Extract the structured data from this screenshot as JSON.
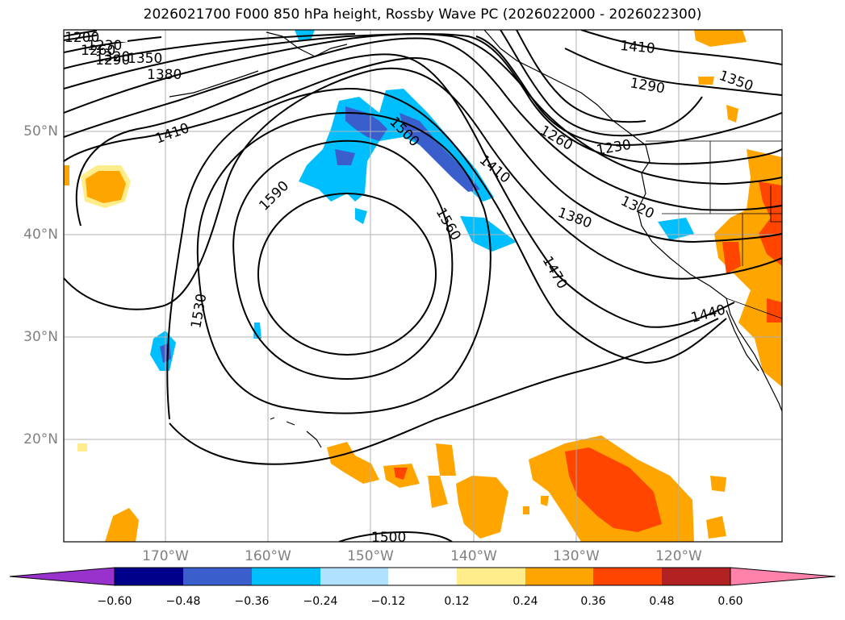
{
  "title": "2026021700 F000 850 hPa height, Rossby Wave PC (2026022000 - 2026022300)",
  "lat_labels": [
    "50°N",
    "40°N",
    "30°N",
    "20°N"
  ],
  "lon_labels": [
    "170°W",
    "160°W",
    "150°W",
    "140°W",
    "130°W",
    "120°W"
  ],
  "contour_labels": [
    "1200",
    "1230",
    "1260",
    "1290",
    "1320",
    "1350",
    "1380",
    "1410",
    "1590",
    "1500",
    "1410",
    "1560",
    "1380",
    "1320",
    "1470",
    "1530",
    "1440",
    "1500",
    "1260",
    "1290",
    "1350",
    "1410",
    "1230"
  ],
  "colorbar": {
    "ticks": [
      "−0.60",
      "−0.48",
      "−0.36",
      "−0.24",
      "−0.12",
      "0.12",
      "0.24",
      "0.36",
      "0.48",
      "0.60"
    ],
    "colors": [
      "#9932cc",
      "#00008b",
      "#3a5fcd",
      "#00bfff",
      "#b0e2ff",
      "#ffffff",
      "#ffec8b",
      "#ffa500",
      "#ff4500",
      "#b22222",
      "#ff82ab"
    ]
  },
  "chart_data": {
    "type": "contour_map",
    "variable": "850 hPa height",
    "shaded_variable": "Rossby Wave PC",
    "lat_range": [
      10,
      60
    ],
    "lon_range": [
      -180,
      -110
    ],
    "contour_levels": [
      1200,
      1230,
      1260,
      1290,
      1320,
      1350,
      1380,
      1410,
      1440,
      1470,
      1500,
      1530,
      1560,
      1590
    ],
    "colorbar_levels": [
      -0.6,
      -0.48,
      -0.36,
      -0.24,
      -0.12,
      0.12,
      0.24,
      0.36,
      0.48,
      0.6
    ]
  }
}
